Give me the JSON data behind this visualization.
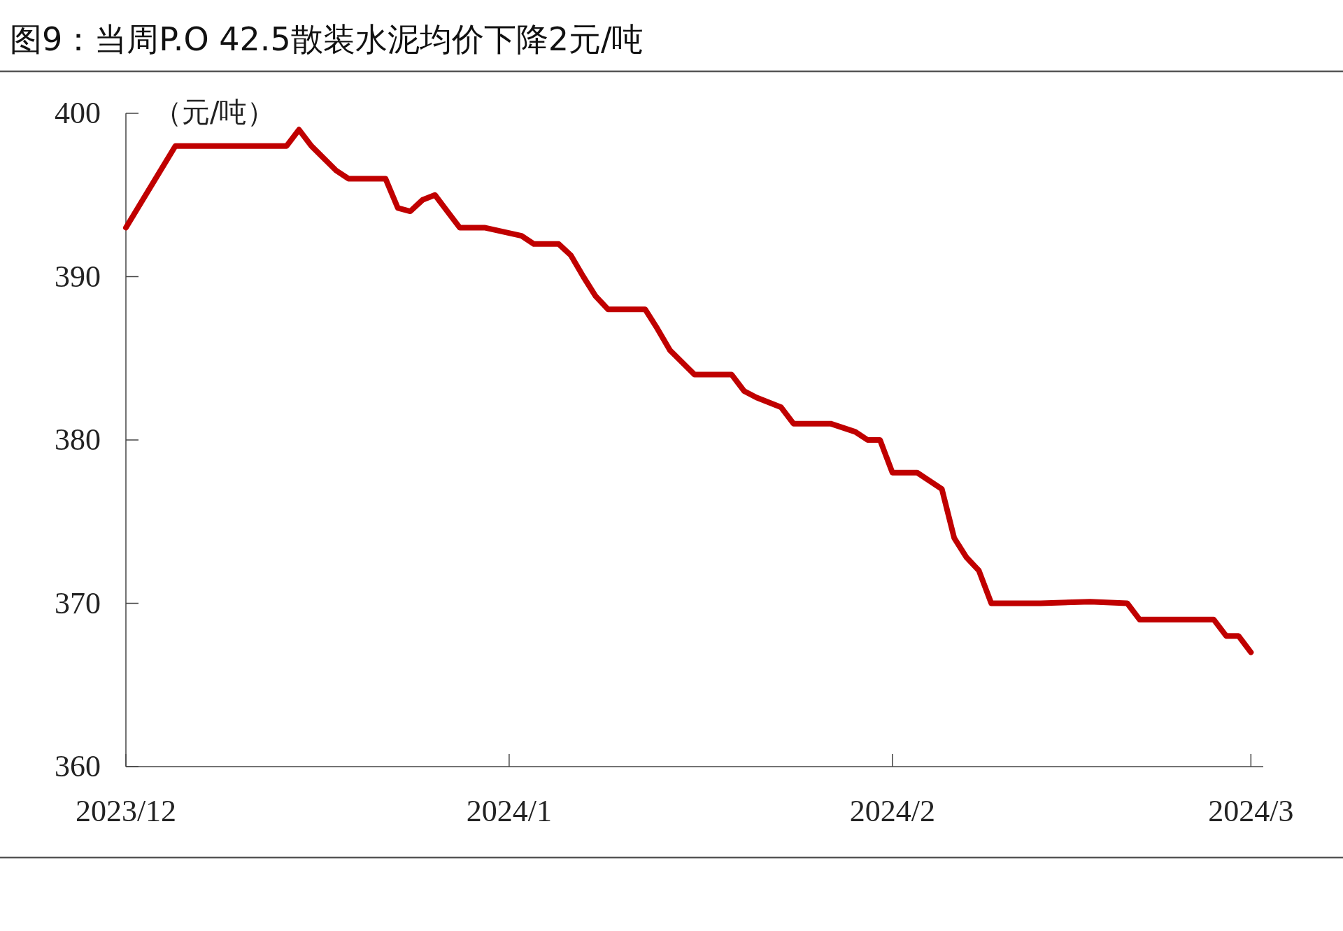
{
  "chart_data": {
    "type": "line",
    "title": "图9：当周P.O 42.5散装水泥均价下降2元/吨",
    "ylabel": "（元/吨）",
    "x": [
      "2023-12-01",
      "2023-12-05",
      "2023-12-13",
      "2023-12-14",
      "2023-12-15",
      "2023-12-16",
      "2023-12-18",
      "2023-12-19",
      "2023-12-22",
      "2023-12-23",
      "2023-12-24",
      "2023-12-25",
      "2023-12-26",
      "2023-12-27",
      "2023-12-28",
      "2023-12-30",
      "2024-01-02",
      "2024-01-03",
      "2024-01-05",
      "2024-01-06",
      "2024-01-07",
      "2024-01-08",
      "2024-01-09",
      "2024-01-12",
      "2024-01-13",
      "2024-01-14",
      "2024-01-16",
      "2024-01-19",
      "2024-01-20",
      "2024-01-21",
      "2024-01-23",
      "2024-01-24",
      "2024-01-27",
      "2024-01-29",
      "2024-01-30",
      "2024-01-31",
      "2024-02-01",
      "2024-02-03",
      "2024-02-05",
      "2024-02-06",
      "2024-02-07",
      "2024-02-08",
      "2024-02-09",
      "2024-02-13",
      "2024-02-17",
      "2024-02-20",
      "2024-02-21",
      "2024-02-27",
      "2024-02-28",
      "2024-02-29",
      "2024-03-01"
    ],
    "series": [
      {
        "color": "#c00000",
        "values": [
          393,
          398,
          398,
          398,
          399,
          398,
          396.5,
          396,
          396,
          394.2,
          394,
          394.7,
          395,
          394,
          393,
          393,
          392.5,
          392,
          392,
          391.3,
          390,
          388.8,
          388,
          388,
          386.8,
          385.5,
          384,
          384,
          383,
          382.6,
          382,
          381,
          381,
          380.5,
          380,
          380,
          378,
          378,
          377,
          374,
          372.8,
          372,
          370,
          370,
          370.1,
          370,
          369,
          369,
          368,
          368,
          367
        ]
      }
    ],
    "xlim": [
      "2023-12-01",
      "2024-03-02"
    ],
    "xticks": [
      {
        "value": "2023-12-01",
        "label": "2023/12"
      },
      {
        "value": "2024-01-01",
        "label": "2024/1"
      },
      {
        "value": "2024-02-01",
        "label": "2024/2"
      },
      {
        "value": "2024-03-01",
        "label": "2024/3"
      }
    ],
    "ylim": [
      360,
      400
    ],
    "yticks": [
      360,
      370,
      380,
      390,
      400
    ],
    "grid": false,
    "marker": "none",
    "line_style": "solid"
  }
}
